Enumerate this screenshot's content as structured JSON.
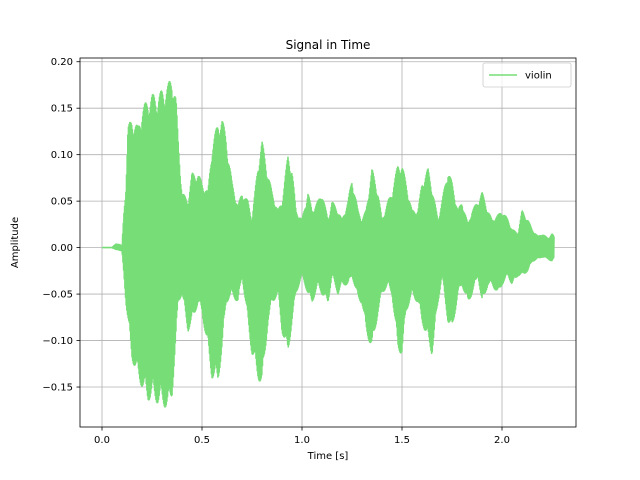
{
  "chart_data": {
    "type": "line",
    "title": "Signal in Time",
    "xlabel": "Time [s]",
    "ylabel": "Amplitude",
    "xlim": [
      -0.11,
      2.37
    ],
    "ylim": [
      -0.193,
      0.204
    ],
    "xticks": [
      0.0,
      0.5,
      1.0,
      1.5,
      2.0
    ],
    "xtick_labels": [
      "0.0",
      "0.5",
      "1.0",
      "1.5",
      "2.0"
    ],
    "yticks": [
      -0.15,
      -0.1,
      -0.05,
      0.0,
      0.05,
      0.1,
      0.15,
      0.2
    ],
    "ytick_labels": [
      "−0.15",
      "−0.10",
      "−0.05",
      "0.00",
      "0.05",
      "0.10",
      "0.15",
      "0.20"
    ],
    "grid": true,
    "legend_position": "top-right",
    "series": [
      {
        "name": "violin",
        "color": "#77dd77",
        "envelope": {
          "t": [
            0.0,
            0.05,
            0.07,
            0.08,
            0.1,
            0.11,
            0.12,
            0.13,
            0.15,
            0.18,
            0.2,
            0.23,
            0.25,
            0.28,
            0.3,
            0.33,
            0.35,
            0.37,
            0.38,
            0.4,
            0.43,
            0.45,
            0.48,
            0.5,
            0.53,
            0.55,
            0.58,
            0.6,
            0.62,
            0.65,
            0.68,
            0.7,
            0.73,
            0.75,
            0.78,
            0.8,
            0.83,
            0.85,
            0.88,
            0.9,
            0.93,
            0.95,
            0.97,
            1.0,
            1.03,
            1.05,
            1.08,
            1.1,
            1.13,
            1.15,
            1.18,
            1.2,
            1.23,
            1.25,
            1.28,
            1.3,
            1.32,
            1.35,
            1.38,
            1.4,
            1.43,
            1.45,
            1.48,
            1.5,
            1.52,
            1.55,
            1.58,
            1.6,
            1.63,
            1.65,
            1.68,
            1.7,
            1.73,
            1.75,
            1.78,
            1.8,
            1.83,
            1.85,
            1.88,
            1.9,
            1.93,
            1.95,
            1.98,
            2.0,
            2.03,
            2.05,
            2.08,
            2.1,
            2.13,
            2.15,
            2.18,
            2.2,
            2.23,
            2.25,
            2.26
          ],
          "upper": [
            0.0,
            0.0,
            0.004,
            0.004,
            0.002,
            0.04,
            0.07,
            0.13,
            0.14,
            0.13,
            0.15,
            0.16,
            0.165,
            0.163,
            0.17,
            0.175,
            0.188,
            0.16,
            0.12,
            0.06,
            0.05,
            0.08,
            0.08,
            0.07,
            0.06,
            0.11,
            0.135,
            0.14,
            0.12,
            0.07,
            0.045,
            0.06,
            0.05,
            0.03,
            0.09,
            0.115,
            0.08,
            0.06,
            0.04,
            0.05,
            0.1,
            0.085,
            0.04,
            0.03,
            0.06,
            0.04,
            0.05,
            0.06,
            0.03,
            0.05,
            0.04,
            0.03,
            0.05,
            0.075,
            0.04,
            0.03,
            0.04,
            0.085,
            0.06,
            0.03,
            0.05,
            0.06,
            0.09,
            0.09,
            0.07,
            0.04,
            0.04,
            0.07,
            0.085,
            0.065,
            0.03,
            0.05,
            0.085,
            0.07,
            0.04,
            0.05,
            0.025,
            0.04,
            0.05,
            0.06,
            0.04,
            0.03,
            0.035,
            0.04,
            0.03,
            0.02,
            0.015,
            0.04,
            0.03,
            0.02,
            0.012,
            0.015,
            0.01,
            0.015,
            0.012
          ],
          "lower": [
            0.0,
            0.0,
            -0.002,
            -0.002,
            -0.004,
            -0.03,
            -0.06,
            -0.08,
            -0.12,
            -0.14,
            -0.15,
            -0.165,
            -0.16,
            -0.168,
            -0.168,
            -0.175,
            -0.16,
            -0.1,
            -0.06,
            -0.05,
            -0.09,
            -0.08,
            -0.06,
            -0.07,
            -0.11,
            -0.14,
            -0.145,
            -0.11,
            -0.06,
            -0.05,
            -0.06,
            -0.03,
            -0.08,
            -0.115,
            -0.14,
            -0.15,
            -0.08,
            -0.06,
            -0.05,
            -0.09,
            -0.115,
            -0.08,
            -0.05,
            -0.03,
            -0.05,
            -0.06,
            -0.04,
            -0.05,
            -0.06,
            -0.03,
            -0.05,
            -0.04,
            -0.04,
            -0.03,
            -0.055,
            -0.06,
            -0.09,
            -0.11,
            -0.07,
            -0.05,
            -0.04,
            -0.05,
            -0.11,
            -0.115,
            -0.07,
            -0.05,
            -0.06,
            -0.08,
            -0.1,
            -0.115,
            -0.06,
            -0.03,
            -0.08,
            -0.09,
            -0.05,
            -0.04,
            -0.06,
            -0.05,
            -0.03,
            -0.06,
            -0.04,
            -0.04,
            -0.05,
            -0.04,
            -0.03,
            -0.04,
            -0.03,
            -0.03,
            -0.025,
            -0.015,
            -0.012,
            -0.01,
            -0.012,
            -0.015,
            -0.012
          ]
        }
      }
    ]
  }
}
